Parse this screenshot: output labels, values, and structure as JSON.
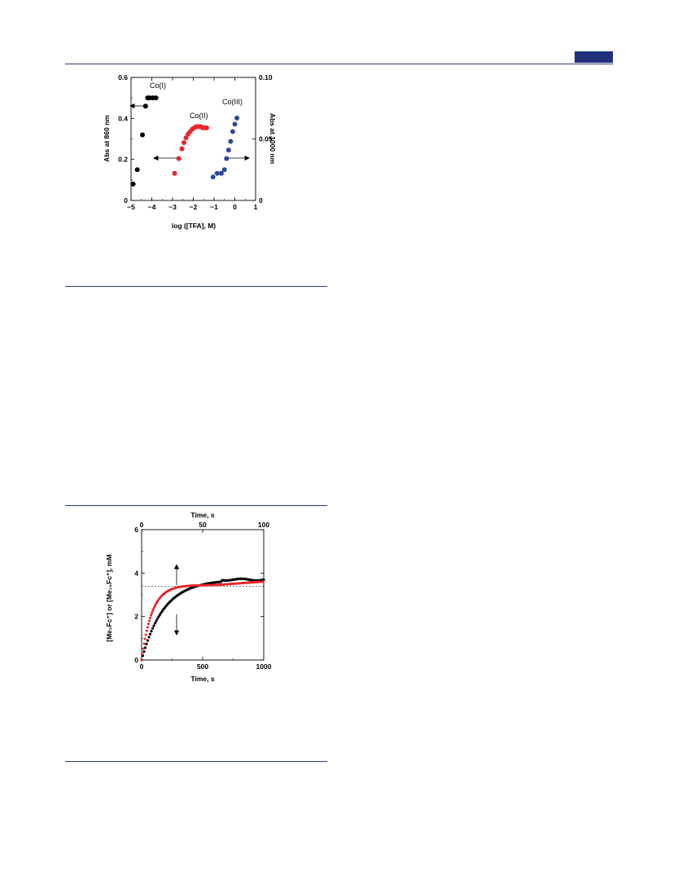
{
  "page": {
    "header_rule_color": "#2b3a7a",
    "header_tab_color": "#1f2f7a"
  },
  "figure1": {
    "chart_data": {
      "type": "scatter",
      "xlabel": "log ([TFA], M)",
      "ylabel_left": "Abs at 860 nm",
      "ylabel_right": "Abs at 1000 nm",
      "xlim": [
        -5,
        1
      ],
      "ylim_left": [
        0,
        0.6
      ],
      "ylim_right": [
        0,
        0.1
      ],
      "x_ticks": [
        "−5",
        "−4",
        "−3",
        "−2",
        "−1",
        "0",
        "1"
      ],
      "y_left_ticks": [
        "0",
        "0.2",
        "0.4",
        "0.6"
      ],
      "y_right_ticks": [
        "0",
        "0.05",
        "0.10"
      ],
      "series": [
        {
          "name": "Co(I)",
          "axis": "left",
          "color": "#000000",
          "x": [
            -4.9,
            -4.7,
            -4.45,
            -4.3,
            -4.2,
            -4.1,
            -3.95,
            -3.8
          ],
          "y": [
            0.08,
            0.15,
            0.32,
            0.46,
            0.5,
            0.5,
            0.5,
            0.5
          ]
        },
        {
          "name": "Co(II)",
          "axis": "right",
          "color": "#e8262b",
          "x": [
            -2.9,
            -2.7,
            -2.55,
            -2.45,
            -2.35,
            -2.25,
            -2.15,
            -2.05,
            -1.95,
            -1.85,
            -1.75,
            -1.65,
            -1.55,
            -1.45,
            -1.35
          ],
          "y": [
            0.022,
            0.034,
            0.042,
            0.047,
            0.051,
            0.054,
            0.056,
            0.058,
            0.059,
            0.06,
            0.06,
            0.06,
            0.059,
            0.059,
            0.059
          ]
        },
        {
          "name": "Co(III)",
          "axis": "right",
          "color": "#2b4aa0",
          "x": [
            -1.05,
            -0.85,
            -0.65,
            -0.5,
            -0.4,
            -0.3,
            -0.2,
            -0.1,
            0.0,
            0.1
          ],
          "y": [
            0.019,
            0.022,
            0.022,
            0.025,
            0.034,
            0.041,
            0.048,
            0.056,
            0.062,
            0.067
          ]
        }
      ]
    }
  },
  "figure2": {
    "chart_data": {
      "type": "scatter",
      "xlabel_top": "Time, s",
      "xlabel_bottom": "Time, s",
      "ylabel": "[Me₂Fc⁺] or [Me₁₀Fc⁺], mM",
      "xlim_bottom": [
        0,
        1000
      ],
      "xlim_top": [
        0,
        100
      ],
      "ylim": [
        0,
        6
      ],
      "x_bottom_ticks": [
        "0",
        "500",
        "1000"
      ],
      "x_top_ticks": [
        "0",
        "50",
        "100"
      ],
      "y_ticks": [
        "0",
        "2",
        "4",
        "6"
      ],
      "dashed_line_y": 3.4,
      "series": [
        {
          "axis": "bottom",
          "color": "#000000",
          "tau": 180,
          "plateau": 3.7
        },
        {
          "axis": "top",
          "color": "#e8262b",
          "tau": 8.5,
          "plateau": 3.45
        }
      ]
    }
  }
}
